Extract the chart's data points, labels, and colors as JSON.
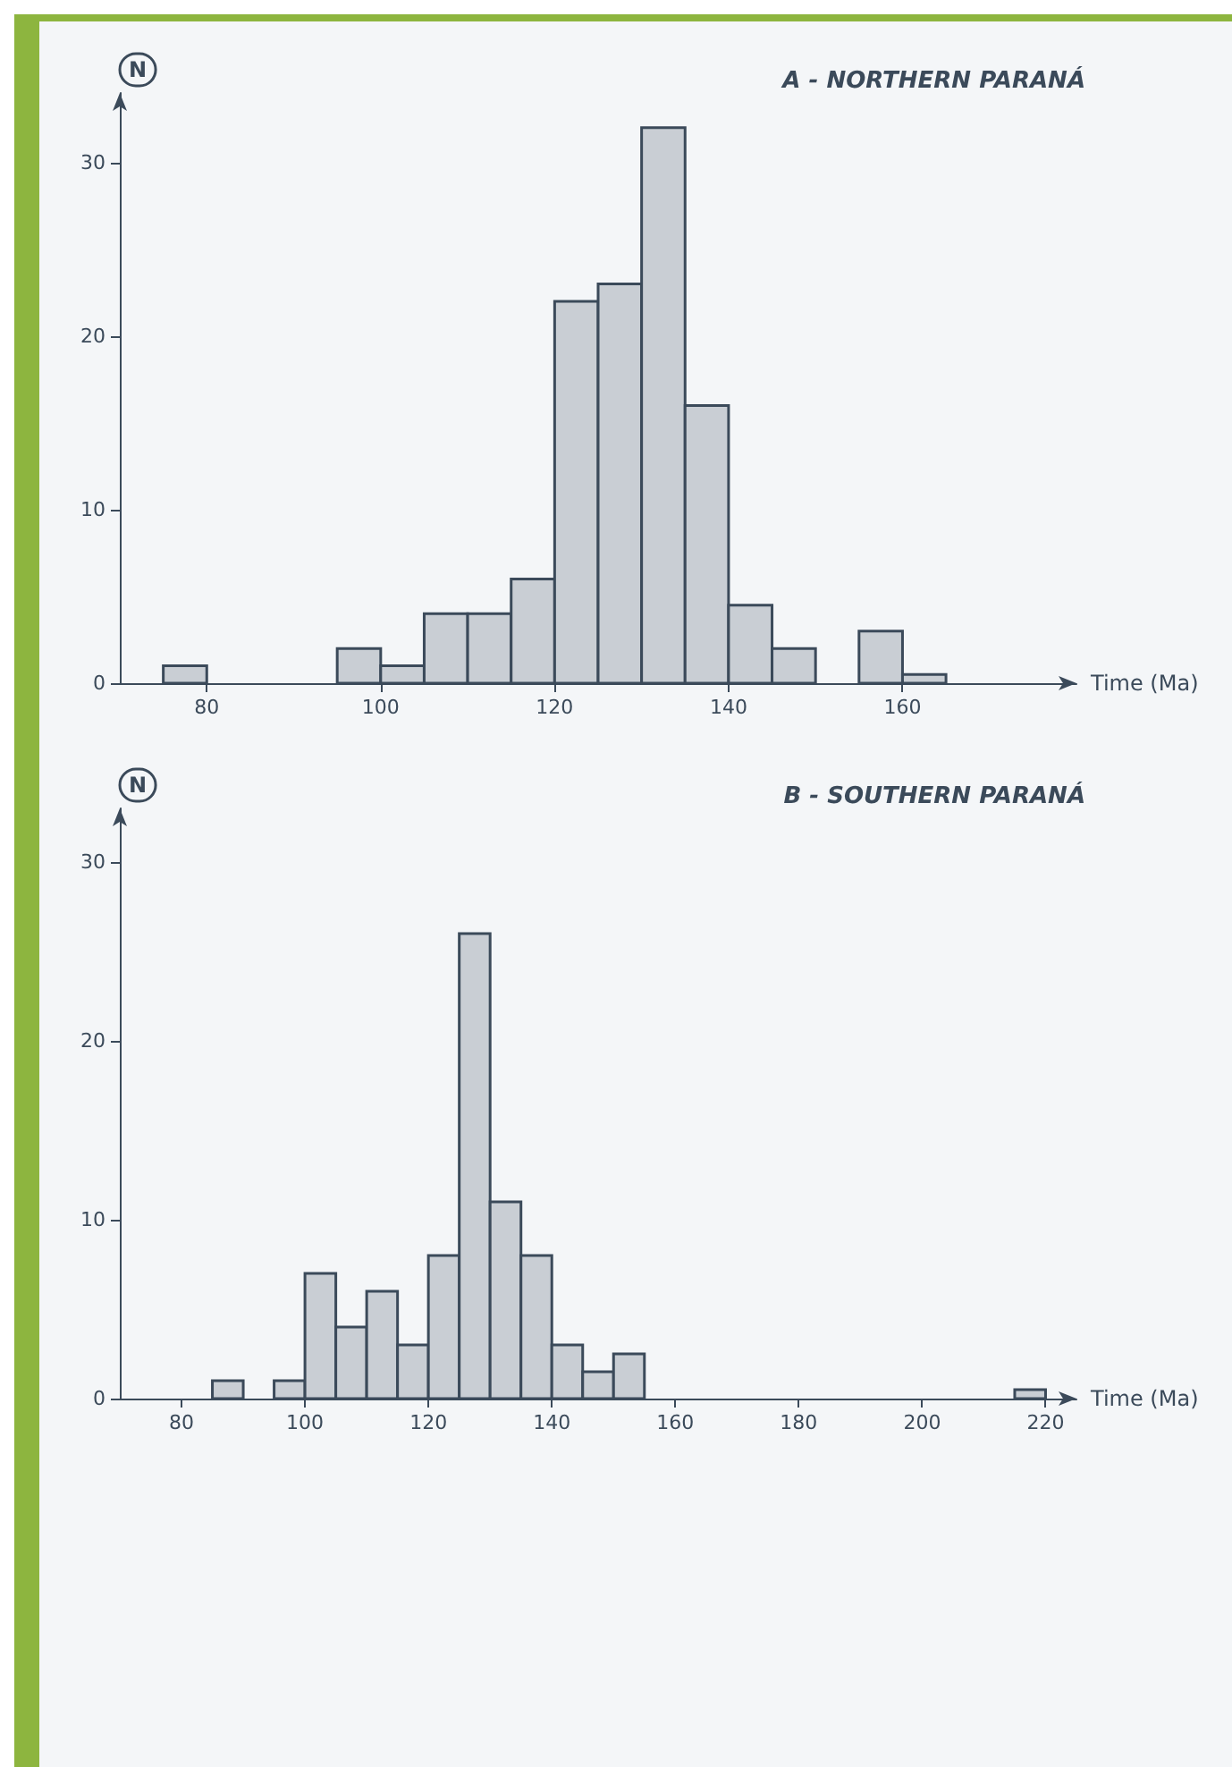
{
  "chart_data": [
    {
      "type": "histogram",
      "title": "A - NORTHERN PARANÁ",
      "xlabel": "Time (Ma)",
      "ylabel": "N",
      "color": "#c9ced4",
      "bins": [
        75,
        80,
        85,
        90,
        95,
        100,
        105,
        110,
        115,
        120,
        125,
        130,
        135,
        140,
        145,
        150,
        155,
        160,
        165
      ],
      "values": [
        1,
        0,
        0,
        0,
        2,
        1,
        4,
        4,
        6,
        22,
        23,
        32,
        16,
        4.5,
        2,
        0,
        3,
        0.5
      ],
      "xlim": [
        70,
        180
      ],
      "xticks": [
        80,
        100,
        120,
        140,
        160
      ],
      "ylim": [
        0,
        34
      ],
      "yticks": [
        0,
        10,
        20,
        30
      ],
      "grid": false
    },
    {
      "type": "histogram",
      "title": "B - SOUTHERN PARANÁ",
      "xlabel": "Time (Ma)",
      "ylabel": "N",
      "color": "#c9ced4",
      "bins": [
        85,
        90,
        95,
        100,
        105,
        110,
        115,
        120,
        125,
        130,
        135,
        140,
        145,
        150,
        155,
        160,
        165,
        170,
        175,
        180,
        185,
        190,
        195,
        200,
        205,
        210,
        215,
        220
      ],
      "values": [
        1,
        0,
        1,
        7,
        4,
        6,
        3,
        8,
        26,
        11,
        8,
        3,
        1.5,
        2.5,
        0,
        0,
        0,
        0,
        0,
        0,
        0,
        0,
        0,
        0,
        0,
        0,
        0.5
      ],
      "xlim": [
        70,
        225
      ],
      "xticks": [
        80,
        100,
        120,
        140,
        160,
        180,
        200,
        220
      ],
      "ylim": [
        0,
        33
      ],
      "yticks": [
        0,
        10,
        20,
        30
      ],
      "grid": false
    }
  ]
}
